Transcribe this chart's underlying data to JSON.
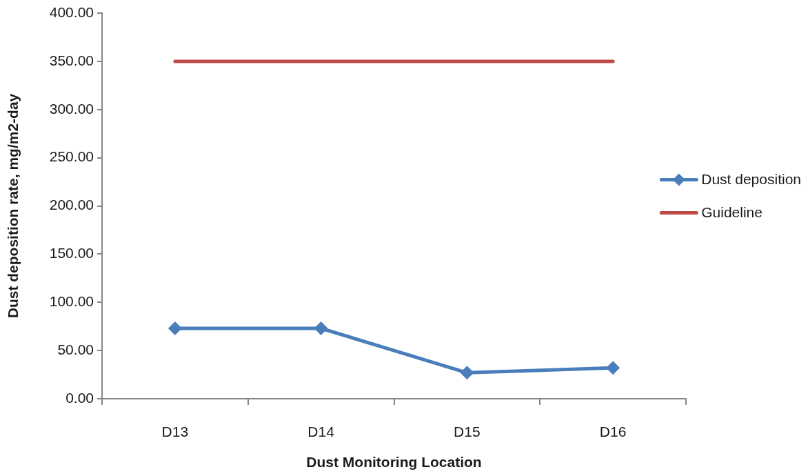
{
  "chart_data": {
    "type": "line",
    "xlabel": "Dust Monitoring Location",
    "ylabel": "Dust deposition rate, mg/m2-day",
    "categories": [
      "D13",
      "D14",
      "D15",
      "D16"
    ],
    "series": [
      {
        "name": "Dust deposition",
        "color": "#4a7ebb",
        "values": [
          73,
          73,
          27,
          32
        ],
        "marker": "diamond"
      },
      {
        "name": "Guideline",
        "color": "#be4b48",
        "values": [
          350,
          350,
          350,
          350
        ],
        "marker": "none"
      }
    ],
    "ylim": [
      0,
      400
    ],
    "yticks": [
      {
        "value": 0,
        "label": "0.00"
      },
      {
        "value": 50,
        "label": "50.00"
      },
      {
        "value": 100,
        "label": "100.00"
      },
      {
        "value": 150,
        "label": "150.00"
      },
      {
        "value": 200,
        "label": "200.00"
      },
      {
        "value": 250,
        "label": "250.00"
      },
      {
        "value": 300,
        "label": "300.00"
      },
      {
        "value": 350,
        "label": "350.00"
      },
      {
        "value": 400,
        "label": "400.00"
      }
    ],
    "grid": false,
    "legend": "right",
    "line_style": "solid"
  }
}
